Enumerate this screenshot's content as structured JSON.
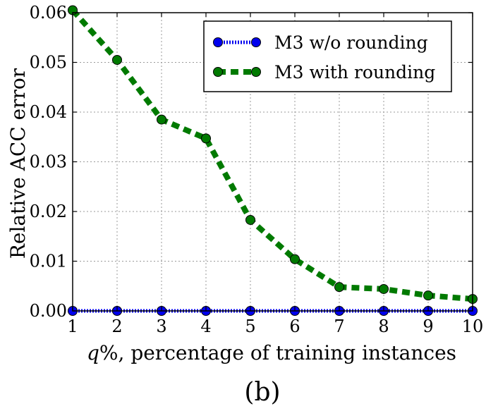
{
  "chart_data": {
    "type": "line",
    "xlabel": "q%, percentage of training instances",
    "ylabel": "Relative ACC error",
    "caption": "(b)",
    "x": [
      1,
      2,
      3,
      4,
      5,
      6,
      7,
      8,
      9,
      10
    ],
    "xlim": [
      1,
      10
    ],
    "ylim": [
      0,
      0.06
    ],
    "xticks": [
      "1",
      "2",
      "3",
      "4",
      "5",
      "6",
      "7",
      "8",
      "9",
      "10"
    ],
    "yticks": [
      "0.00",
      "0.01",
      "0.02",
      "0.03",
      "0.04",
      "0.05",
      "0.06"
    ],
    "grid": true,
    "legend_position": "top-right",
    "series": [
      {
        "name": "M3 w/o rounding",
        "color": "#0000ee",
        "style": "dotted",
        "marker": "circle",
        "values": [
          0,
          0,
          0,
          0,
          0,
          0,
          0,
          0,
          0,
          0
        ]
      },
      {
        "name": "M3 with rounding",
        "color": "#007a00",
        "style": "dashed",
        "marker": "circle",
        "values": [
          0.0605,
          0.0505,
          0.0385,
          0.0347,
          0.0183,
          0.0104,
          0.0048,
          0.0044,
          0.0031,
          0.0024
        ]
      }
    ]
  }
}
